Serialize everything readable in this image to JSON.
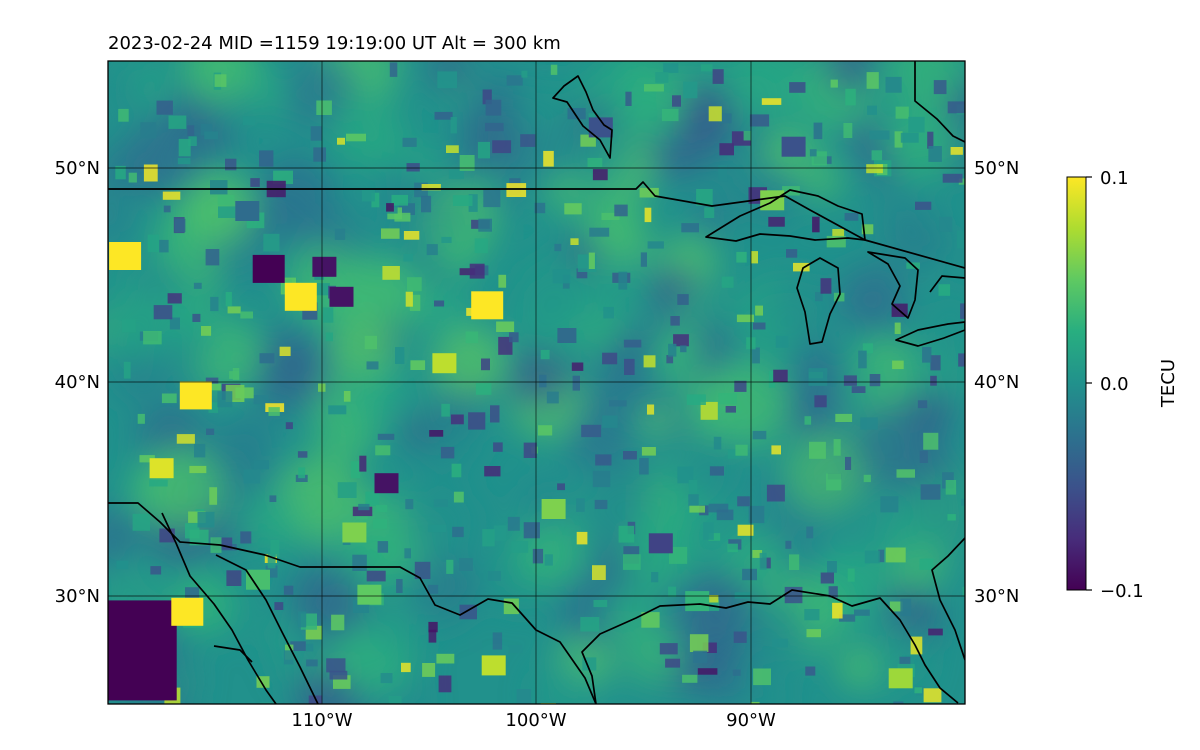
{
  "header": {
    "title": "2023-02-24  MID =1159    19:19:00  UT  Alt = 300 km"
  },
  "map": {
    "lon_range": [
      -120,
      -80
    ],
    "lat_range": [
      25,
      55
    ],
    "lat_ticks": [
      {
        "value": 30,
        "label": "30°N"
      },
      {
        "value": 40,
        "label": "40°N"
      },
      {
        "value": 50,
        "label": "50°N"
      }
    ],
    "lon_ticks": [
      {
        "value": -110,
        "label": "110°W"
      },
      {
        "value": -100,
        "label": "100°W"
      },
      {
        "value": -90,
        "label": "90°W"
      }
    ],
    "gridlines": true,
    "colormap": "viridis"
  },
  "colorbar": {
    "label": "TECU",
    "min": -0.1,
    "max": 0.1,
    "ticks": [
      {
        "value": 0.1,
        "label": "0.1"
      },
      {
        "value": 0.0,
        "label": "0.0"
      },
      {
        "value": -0.1,
        "label": "−0.1"
      }
    ]
  },
  "chart_data": {
    "type": "heatmap",
    "title": "2023-02-24  MID =1159    19:19:00  UT  Alt = 300 km",
    "xlabel": "",
    "ylabel": "",
    "xlim": [
      -120,
      -80
    ],
    "ylim": [
      25,
      55
    ],
    "colorbar_label": "TECU",
    "vmin": -0.1,
    "vmax": 0.1,
    "background_level": 0.0,
    "notable_regions": [
      {
        "lon": -118.8,
        "lat": 27.5,
        "value": -0.1
      },
      {
        "lon": -116.3,
        "lat": 29.3,
        "value": 0.1
      },
      {
        "lon": -113.5,
        "lat": 48.0,
        "value": -0.03
      },
      {
        "lon": -117.5,
        "lat": 36.0,
        "value": 0.09
      },
      {
        "lon": -115.9,
        "lat": 39.4,
        "value": 0.1
      },
      {
        "lon": -109.1,
        "lat": 44.0,
        "value": -0.09
      },
      {
        "lon": -111.0,
        "lat": 44.0,
        "value": 0.1
      },
      {
        "lon": -112.5,
        "lat": 45.3,
        "value": -0.1
      },
      {
        "lon": -109.9,
        "lat": 45.4,
        "value": -0.09
      },
      {
        "lon": -107.0,
        "lat": 35.3,
        "value": -0.09
      },
      {
        "lon": -102.0,
        "lat": 26.8,
        "value": 0.08
      },
      {
        "lon": -108.5,
        "lat": 33.0,
        "value": 0.06
      },
      {
        "lon": -88.0,
        "lat": 51.0,
        "value": -0.05
      },
      {
        "lon": -97.0,
        "lat": 51.9,
        "value": -0.05
      },
      {
        "lon": -89.0,
        "lat": 48.5,
        "value": 0.06
      },
      {
        "lon": -102.3,
        "lat": 43.6,
        "value": 0.1
      },
      {
        "lon": -104.3,
        "lat": 40.9,
        "value": 0.08
      },
      {
        "lon": -119.2,
        "lat": 45.9,
        "value": 0.1
      },
      {
        "lon": -99.2,
        "lat": 34.1,
        "value": 0.06
      },
      {
        "lon": -94.2,
        "lat": 32.5,
        "value": -0.06
      },
      {
        "lon": -83.0,
        "lat": 26.2,
        "value": 0.07
      },
      {
        "lon": -107.8,
        "lat": 30.1,
        "value": 0.05
      },
      {
        "lon": -113.0,
        "lat": 30.8,
        "value": 0.04
      },
      {
        "lon": -92.5,
        "lat": 29.8,
        "value": 0.03
      }
    ]
  }
}
